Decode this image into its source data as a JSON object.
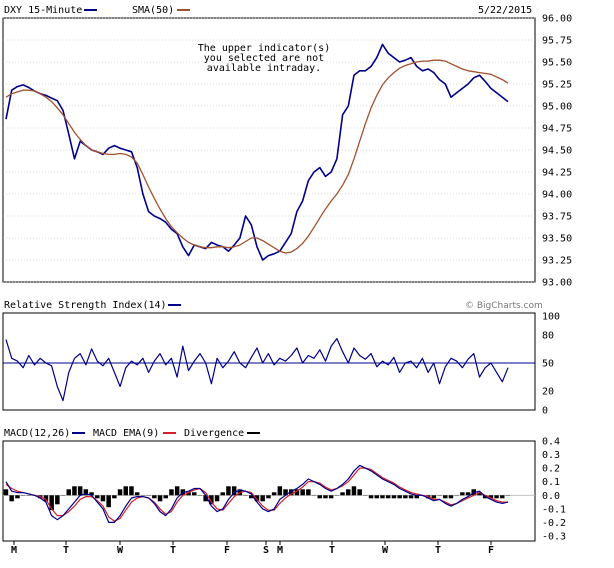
{
  "header": {
    "symbol": "DXY 15-Minute",
    "sma_label": "SMA(50)",
    "date": "5/22/2015",
    "notice": [
      "The upper indicator(s)",
      "you selected are not",
      "available intraday."
    ],
    "watermark": "© BigCharts.com"
  },
  "colors": {
    "price": "#00008b",
    "sma": "#a0522d",
    "rsi": "#00008b",
    "macd": "#00008b",
    "macd_ema": "#d4212a",
    "divergence": "#000000",
    "frame": "#000000",
    "grid": "#bbbbbb"
  },
  "chart_data": [
    {
      "type": "line",
      "title": "DXY 15-Minute",
      "ylim": [
        93.0,
        96.0
      ],
      "yticks": [
        "96.00",
        "95.75",
        "95.50",
        "95.25",
        "95.00",
        "94.75",
        "94.50",
        "94.25",
        "94.00",
        "93.75",
        "93.50",
        "93.25",
        "93.00"
      ],
      "x_ticks": [
        "M",
        "T",
        "W",
        "T",
        "F",
        "S",
        "M",
        "T",
        "W",
        "T",
        "F"
      ],
      "grid": true,
      "series": [
        {
          "name": "DXY 15-Minute",
          "values": [
            94.85,
            95.18,
            95.22,
            95.24,
            95.21,
            95.17,
            95.14,
            95.12,
            95.09,
            95.06,
            94.95,
            94.68,
            94.4,
            94.6,
            94.55,
            94.5,
            94.48,
            94.45,
            94.52,
            94.55,
            94.52,
            94.5,
            94.48,
            94.3,
            94.0,
            93.8,
            93.75,
            93.72,
            93.68,
            93.6,
            93.55,
            93.4,
            93.3,
            93.42,
            93.4,
            93.38,
            93.45,
            93.42,
            93.4,
            93.35,
            93.42,
            93.5,
            93.75,
            93.65,
            93.4,
            93.25,
            93.3,
            93.32,
            93.35,
            93.45,
            93.55,
            93.8,
            93.92,
            94.15,
            94.25,
            94.3,
            94.2,
            94.25,
            94.4,
            94.9,
            95.0,
            95.35,
            95.4,
            95.4,
            95.45,
            95.55,
            95.7,
            95.6,
            95.55,
            95.5,
            95.52,
            95.55,
            95.45,
            95.4,
            95.42,
            95.38,
            95.3,
            95.25,
            95.1,
            95.15,
            95.2,
            95.25,
            95.32,
            95.35,
            95.28,
            95.2,
            95.15,
            95.1,
            95.05
          ]
        },
        {
          "name": "SMA(50)",
          "values": [
            95.1,
            95.14,
            95.16,
            95.18,
            95.18,
            95.17,
            95.14,
            95.1,
            95.05,
            94.98,
            94.9,
            94.8,
            94.7,
            94.62,
            94.55,
            94.5,
            94.48,
            94.46,
            94.45,
            94.45,
            94.46,
            94.45,
            94.42,
            94.35,
            94.22,
            94.08,
            93.95,
            93.83,
            93.72,
            93.63,
            93.56,
            93.5,
            93.45,
            93.42,
            93.4,
            93.39,
            93.39,
            93.4,
            93.4,
            93.39,
            93.4,
            93.42,
            93.46,
            93.5,
            93.5,
            93.47,
            93.43,
            93.39,
            93.35,
            93.33,
            93.34,
            93.38,
            93.44,
            93.52,
            93.62,
            93.73,
            93.83,
            93.92,
            94.0,
            94.1,
            94.22,
            94.4,
            94.6,
            94.8,
            94.98,
            95.12,
            95.24,
            95.32,
            95.38,
            95.43,
            95.46,
            95.48,
            95.5,
            95.51,
            95.51,
            95.52,
            95.52,
            95.51,
            95.48,
            95.45,
            95.42,
            95.4,
            95.39,
            95.38,
            95.37,
            95.36,
            95.33,
            95.3,
            95.26
          ]
        }
      ]
    },
    {
      "type": "line",
      "title": "Relative Strength Index(14)",
      "ylim": [
        0,
        100
      ],
      "yticks": [
        "100",
        "80",
        "50",
        "20",
        "0"
      ],
      "reference_line": 50,
      "series": [
        {
          "name": "Relative Strength Index(14)",
          "values": [
            75,
            55,
            52,
            45,
            58,
            48,
            55,
            50,
            47,
            25,
            10,
            40,
            55,
            60,
            48,
            65,
            52,
            47,
            55,
            40,
            25,
            45,
            52,
            48,
            55,
            40,
            52,
            60,
            48,
            55,
            35,
            68,
            42,
            52,
            60,
            50,
            28,
            55,
            45,
            52,
            62,
            50,
            45,
            56,
            66,
            50,
            60,
            48,
            55,
            52,
            58,
            66,
            50,
            58,
            55,
            64,
            52,
            68,
            76,
            62,
            50,
            66,
            58,
            54,
            60,
            46,
            52,
            48,
            56,
            40,
            50,
            52,
            45,
            55,
            40,
            50,
            28,
            46,
            55,
            52,
            45,
            54,
            60,
            35,
            45,
            50,
            40,
            30,
            45
          ]
        }
      ]
    },
    {
      "type": "line",
      "title": "MACD(12,26)",
      "ylim": [
        -0.3,
        0.4
      ],
      "yticks": [
        "0.4",
        "0.3",
        "0.2",
        "0.1",
        "0.0",
        "-0.1",
        "-0.2",
        "-0.3"
      ],
      "series": [
        {
          "name": "MACD(12,26)",
          "values": [
            0.1,
            0.03,
            0.02,
            0.02,
            0.01,
            0.0,
            -0.02,
            -0.05,
            -0.15,
            -0.18,
            -0.15,
            -0.1,
            -0.05,
            0.0,
            0.01,
            0.0,
            -0.05,
            -0.1,
            -0.2,
            -0.2,
            -0.15,
            -0.08,
            -0.02,
            -0.01,
            -0.01,
            -0.02,
            -0.06,
            -0.12,
            -0.15,
            -0.1,
            -0.02,
            0.02,
            0.03,
            0.05,
            0.05,
            0.0,
            -0.08,
            -0.12,
            -0.1,
            -0.03,
            0.02,
            0.04,
            0.03,
            0.01,
            -0.05,
            -0.1,
            -0.12,
            -0.1,
            -0.03,
            0.0,
            0.03,
            0.05,
            0.08,
            0.12,
            0.1,
            0.08,
            0.05,
            0.03,
            0.05,
            0.08,
            0.12,
            0.18,
            0.22,
            0.2,
            0.18,
            0.15,
            0.12,
            0.1,
            0.08,
            0.05,
            0.03,
            0.01,
            0.0,
            0.0,
            -0.02,
            -0.04,
            -0.03,
            -0.06,
            -0.08,
            -0.06,
            -0.03,
            -0.01,
            0.02,
            0.03,
            -0.01,
            -0.03,
            -0.05,
            -0.06,
            -0.05
          ]
        },
        {
          "name": "MACD EMA(9)",
          "values": [
            0.08,
            0.05,
            0.03,
            0.02,
            0.01,
            0.0,
            -0.01,
            -0.03,
            -0.1,
            -0.15,
            -0.15,
            -0.12,
            -0.08,
            -0.03,
            -0.01,
            -0.01,
            -0.04,
            -0.08,
            -0.16,
            -0.19,
            -0.17,
            -0.11,
            -0.05,
            -0.02,
            -0.01,
            -0.02,
            -0.05,
            -0.1,
            -0.14,
            -0.12,
            -0.05,
            0.0,
            0.02,
            0.04,
            0.05,
            0.02,
            -0.05,
            -0.1,
            -0.11,
            -0.06,
            -0.01,
            0.02,
            0.03,
            0.02,
            -0.03,
            -0.08,
            -0.11,
            -0.11,
            -0.06,
            -0.02,
            0.01,
            0.03,
            0.06,
            0.1,
            0.1,
            0.09,
            0.06,
            0.04,
            0.05,
            0.07,
            0.1,
            0.15,
            0.2,
            0.2,
            0.19,
            0.16,
            0.13,
            0.11,
            0.09,
            0.06,
            0.04,
            0.02,
            0.01,
            0.0,
            -0.01,
            -0.03,
            -0.03,
            -0.05,
            -0.07,
            -0.06,
            -0.04,
            -0.02,
            0.0,
            0.02,
            0.0,
            -0.02,
            -0.04,
            -0.05,
            -0.05
          ]
        }
      ]
    }
  ],
  "legend": {
    "rsi_label": "Relative Strength Index(14)",
    "macd_label": "MACD(12,26)",
    "macd_ema_label": "MACD EMA(9)",
    "divergence_label": "Divergence"
  }
}
